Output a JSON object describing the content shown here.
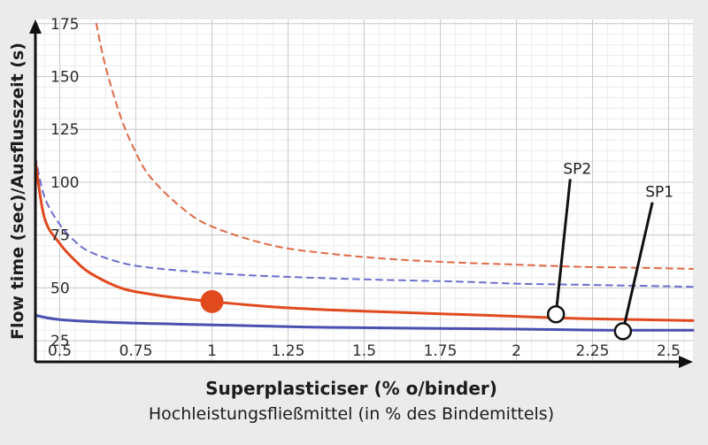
{
  "chart_data": {
    "type": "line",
    "xlabel": "Superplasticiser (% o/binder)",
    "xlabel_secondary": "Hochleistungsfließmittel (in % des Bindemittels)",
    "ylabel": "Flow time (sec)/Ausflusszeit (s)",
    "xlim": [
      0.42,
      2.58
    ],
    "ylim": [
      15,
      177
    ],
    "x_ticks": [
      0.5,
      0.75,
      1,
      1.25,
      1.5,
      1.75,
      2,
      2.25,
      2.5
    ],
    "x_tick_labels": [
      "0.5",
      "0.75",
      "1",
      "1.25",
      "1.5",
      "1.75",
      "2",
      "2.25",
      "2.5"
    ],
    "y_ticks": [
      25,
      50,
      75,
      100,
      125,
      150,
      175
    ],
    "y_tick_labels": [
      "25",
      "50",
      "75",
      "100",
      "125",
      "150",
      "175"
    ],
    "grid": true,
    "series": [
      {
        "color": "#e06a45",
        "style": "dashed",
        "width": 2,
        "points": [
          [
            0.62,
            175
          ],
          [
            0.65,
            155
          ],
          [
            0.7,
            131
          ],
          [
            0.75,
            114
          ],
          [
            0.8,
            102
          ],
          [
            0.9,
            88
          ],
          [
            1.0,
            79
          ],
          [
            1.2,
            70
          ],
          [
            1.4,
            66
          ],
          [
            1.6,
            63.5
          ],
          [
            1.8,
            62
          ],
          [
            2.0,
            61
          ],
          [
            2.2,
            60
          ],
          [
            2.4,
            59.5
          ],
          [
            2.58,
            59
          ]
        ]
      },
      {
        "color": "#6b6fd0",
        "style": "dashed",
        "width": 2,
        "points": [
          [
            0.42,
            112
          ],
          [
            0.45,
            93
          ],
          [
            0.5,
            80
          ],
          [
            0.55,
            72
          ],
          [
            0.6,
            67
          ],
          [
            0.7,
            62
          ],
          [
            0.8,
            59.5
          ],
          [
            1.0,
            57
          ],
          [
            1.2,
            55.5
          ],
          [
            1.5,
            54
          ],
          [
            1.8,
            53
          ],
          [
            2.0,
            52
          ],
          [
            2.2,
            51.5
          ],
          [
            2.4,
            51
          ],
          [
            2.58,
            50.5
          ]
        ]
      },
      {
        "color": "#e14a1e",
        "style": "solid",
        "width": 3,
        "points": [
          [
            0.42,
            110
          ],
          [
            0.45,
            83
          ],
          [
            0.5,
            71
          ],
          [
            0.55,
            63
          ],
          [
            0.6,
            57
          ],
          [
            0.7,
            50
          ],
          [
            0.8,
            47
          ],
          [
            0.9,
            45
          ],
          [
            1.0,
            43.5
          ],
          [
            1.2,
            41
          ],
          [
            1.4,
            39.5
          ],
          [
            1.6,
            38.5
          ],
          [
            1.8,
            37.5
          ],
          [
            2.0,
            36.5
          ],
          [
            2.2,
            35.5
          ],
          [
            2.4,
            35
          ],
          [
            2.58,
            34.5
          ]
        ]
      },
      {
        "color": "#4a4fb0",
        "style": "solid",
        "width": 3,
        "points": [
          [
            0.42,
            37
          ],
          [
            0.5,
            35
          ],
          [
            0.7,
            33.5
          ],
          [
            1.0,
            32.5
          ],
          [
            1.3,
            31.5
          ],
          [
            1.6,
            31
          ],
          [
            2.0,
            30.5
          ],
          [
            2.3,
            30
          ],
          [
            2.58,
            30
          ]
        ]
      }
    ],
    "highlight_point": {
      "x": 1.0,
      "y": 43.5,
      "color": "#e14a1e"
    },
    "annotations": [
      {
        "label": "SP2",
        "point": [
          2.13,
          37.5
        ],
        "label_at": [
          2.2,
          104
        ]
      },
      {
        "label": "SP1",
        "point": [
          2.35,
          29.5
        ],
        "label_at": [
          2.47,
          93
        ]
      }
    ]
  }
}
